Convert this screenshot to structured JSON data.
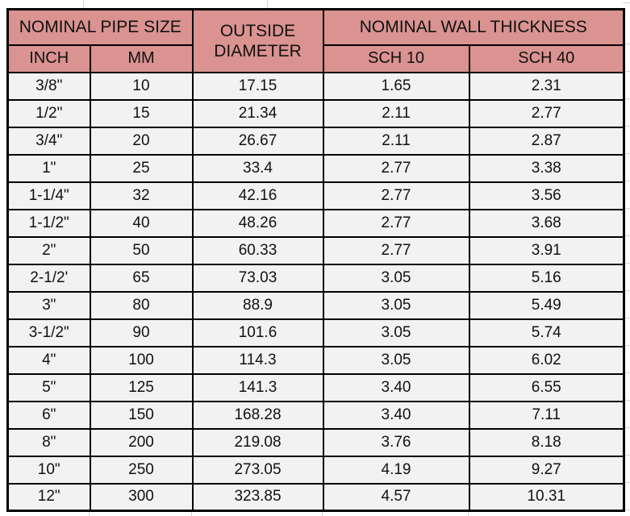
{
  "table": {
    "headers": {
      "nominal_pipe_size": "NOMINAL PIPE SIZE",
      "inch": "INCH",
      "mm": "MM",
      "outside_diameter": "OUTSIDE DIAMETER",
      "nominal_wall_thickness": "NOMINAL WALL THICKNESS",
      "sch10": "SCH 10",
      "sch40": "SCH 40"
    },
    "rows": [
      {
        "inch": "3/8\"",
        "mm": "10",
        "od": "17.15",
        "sch10": "1.65",
        "sch40": "2.31"
      },
      {
        "inch": "1/2\"",
        "mm": "15",
        "od": "21.34",
        "sch10": "2.11",
        "sch40": "2.77"
      },
      {
        "inch": "3/4\"",
        "mm": "20",
        "od": "26.67",
        "sch10": "2.11",
        "sch40": "2.87"
      },
      {
        "inch": "1\"",
        "mm": "25",
        "od": "33.4",
        "sch10": "2.77",
        "sch40": "3.38"
      },
      {
        "inch": "1-1/4\"",
        "mm": "32",
        "od": "42.16",
        "sch10": "2.77",
        "sch40": "3.56"
      },
      {
        "inch": "1-1/2\"",
        "mm": "40",
        "od": "48.26",
        "sch10": "2.77",
        "sch40": "3.68"
      },
      {
        "inch": "2\"",
        "mm": "50",
        "od": "60.33",
        "sch10": "2.77",
        "sch40": "3.91"
      },
      {
        "inch": "2-1/2'",
        "mm": "65",
        "od": "73.03",
        "sch10": "3.05",
        "sch40": "5.16"
      },
      {
        "inch": "3\"",
        "mm": "80",
        "od": "88.9",
        "sch10": "3.05",
        "sch40": "5.49"
      },
      {
        "inch": "3-1/2\"",
        "mm": "90",
        "od": "101.6",
        "sch10": "3.05",
        "sch40": "5.74"
      },
      {
        "inch": "4\"",
        "mm": "100",
        "od": "114.3",
        "sch10": "3.05",
        "sch40": "6.02"
      },
      {
        "inch": "5\"",
        "mm": "125",
        "od": "141.3",
        "sch10": "3.40",
        "sch40": "6.55"
      },
      {
        "inch": "6\"",
        "mm": "150",
        "od": "168.28",
        "sch10": "3.40",
        "sch40": "7.11"
      },
      {
        "inch": "8\"",
        "mm": "200",
        "od": "219.08",
        "sch10": "3.76",
        "sch40": "8.18"
      },
      {
        "inch": "10\"",
        "mm": "250",
        "od": "273.05",
        "sch10": "4.19",
        "sch40": "9.27"
      },
      {
        "inch": "12\"",
        "mm": "300",
        "od": "323.85",
        "sch10": "4.57",
        "sch40": "10.31"
      }
    ],
    "colors": {
      "header_bg": "#da9390",
      "cell_bg": "#f2f2f2",
      "border": "#000000",
      "gridline": "#d5d5d5"
    }
  }
}
